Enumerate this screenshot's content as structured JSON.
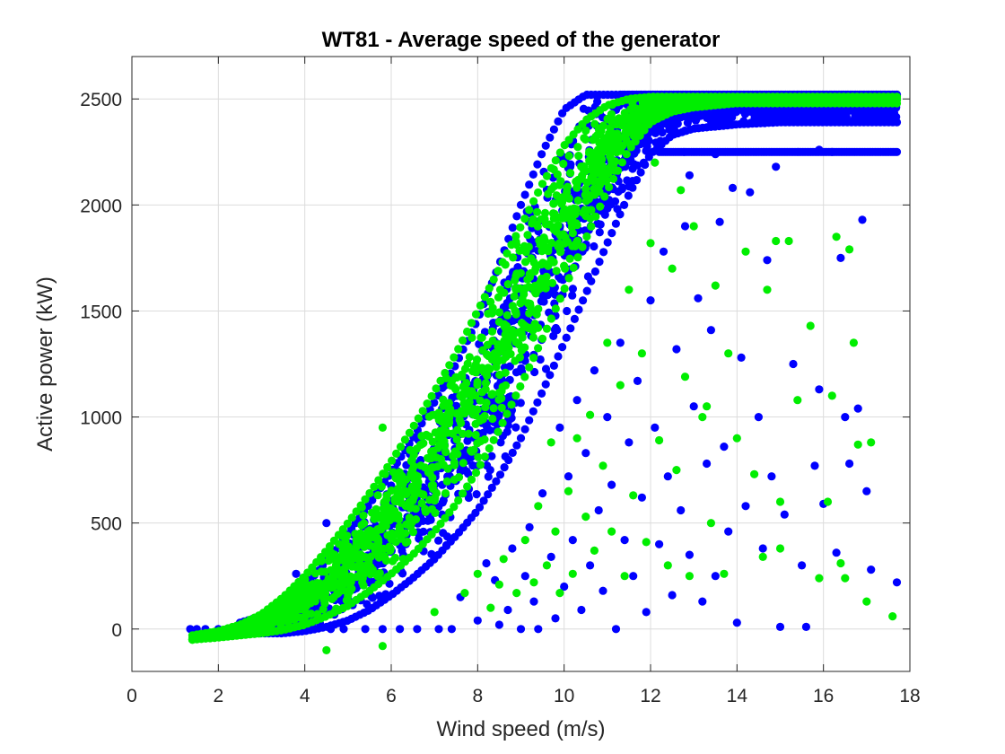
{
  "chart_data": {
    "type": "scatter",
    "title": "WT81 - Average speed of the generator",
    "xlabel": "Wind speed (m/s)",
    "ylabel": "Active power (kW)",
    "xlim": [
      0,
      18
    ],
    "ylim": [
      -200,
      2700
    ],
    "xticks": [
      "0",
      "2",
      "4",
      "6",
      "8",
      "10",
      "12",
      "14",
      "16",
      "18"
    ],
    "yticks": [
      "0",
      "500",
      "1000",
      "1500",
      "2000",
      "2500"
    ],
    "grid": true,
    "legend": "none",
    "series": [
      {
        "color": "#0000ff",
        "band": {
          "x": [
            2.5,
            3.0,
            3.5,
            4.0,
            4.5,
            5.0,
            5.5,
            6.0,
            6.5,
            7.0,
            7.5,
            8.0,
            8.5,
            9.0,
            9.5,
            10.0,
            10.5,
            11.0,
            11.5,
            12.0,
            12.5,
            13.0,
            14.0,
            15.0,
            16.0,
            17.0,
            17.7
          ],
          "low": [
            -20,
            -20,
            -20,
            -10,
            10,
            40,
            90,
            160,
            240,
            330,
            440,
            560,
            720,
            900,
            1120,
            1350,
            1580,
            1820,
            2050,
            2240,
            2330,
            2360,
            2380,
            2390,
            2390,
            2390,
            2390
          ],
          "high": [
            30,
            60,
            120,
            200,
            320,
            450,
            590,
            740,
            900,
            1070,
            1250,
            1460,
            1720,
            2000,
            2250,
            2450,
            2520,
            2520,
            2520,
            2520,
            2520,
            2520,
            2520,
            2520,
            2520,
            2520,
            2520
          ]
        },
        "lines": [
          {
            "x": [
              11.3,
              17.7
            ],
            "y": [
              2520,
              2520
            ]
          },
          {
            "x": [
              12.2,
              17.7
            ],
            "y": [
              2250,
              2250
            ]
          }
        ],
        "points": [
          [
            1.35,
            0
          ],
          [
            1.5,
            0
          ],
          [
            1.7,
            0
          ],
          [
            2.0,
            0
          ],
          [
            2.2,
            0
          ],
          [
            3.8,
            260
          ],
          [
            4.5,
            500
          ],
          [
            4.6,
            0
          ],
          [
            4.9,
            0
          ],
          [
            5.4,
            0
          ],
          [
            5.8,
            0
          ],
          [
            6.2,
            0
          ],
          [
            6.6,
            0
          ],
          [
            7.1,
            0
          ],
          [
            7.4,
            0
          ],
          [
            7.6,
            150
          ],
          [
            8.0,
            40
          ],
          [
            8.2,
            310
          ],
          [
            8.4,
            230
          ],
          [
            8.5,
            20
          ],
          [
            8.7,
            90
          ],
          [
            8.8,
            380
          ],
          [
            9.0,
            0
          ],
          [
            9.1,
            250
          ],
          [
            9.2,
            480
          ],
          [
            9.3,
            130
          ],
          [
            9.4,
            0
          ],
          [
            9.5,
            640
          ],
          [
            9.7,
            340
          ],
          [
            9.8,
            50
          ],
          [
            9.9,
            950
          ],
          [
            10.0,
            200
          ],
          [
            10.1,
            720
          ],
          [
            10.2,
            420
          ],
          [
            10.3,
            1080
          ],
          [
            10.4,
            90
          ],
          [
            10.5,
            830
          ],
          [
            10.6,
            300
          ],
          [
            10.7,
            1220
          ],
          [
            10.8,
            560
          ],
          [
            10.9,
            180
          ],
          [
            11.0,
            1000
          ],
          [
            11.1,
            680
          ],
          [
            11.2,
            0
          ],
          [
            11.3,
            1350
          ],
          [
            11.4,
            420
          ],
          [
            11.5,
            880
          ],
          [
            11.6,
            250
          ],
          [
            11.7,
            1170
          ],
          [
            11.8,
            620
          ],
          [
            11.9,
            80
          ],
          [
            12.0,
            1550
          ],
          [
            12.1,
            950
          ],
          [
            12.2,
            400
          ],
          [
            12.3,
            1780
          ],
          [
            12.4,
            720
          ],
          [
            12.5,
            160
          ],
          [
            12.6,
            1320
          ],
          [
            12.7,
            560
          ],
          [
            12.8,
            1900
          ],
          [
            12.9,
            350
          ],
          [
            13.0,
            1050
          ],
          [
            13.1,
            1560
          ],
          [
            13.2,
            130
          ],
          [
            13.3,
            780
          ],
          [
            13.4,
            1410
          ],
          [
            13.5,
            250
          ],
          [
            13.6,
            1920
          ],
          [
            13.7,
            860
          ],
          [
            13.8,
            460
          ],
          [
            14.0,
            30
          ],
          [
            14.1,
            1280
          ],
          [
            14.2,
            580
          ],
          [
            14.3,
            2060
          ],
          [
            14.5,
            1000
          ],
          [
            14.6,
            380
          ],
          [
            14.7,
            1740
          ],
          [
            14.8,
            720
          ],
          [
            15.0,
            10
          ],
          [
            15.1,
            540
          ],
          [
            15.3,
            1250
          ],
          [
            15.5,
            300
          ],
          [
            15.6,
            10
          ],
          [
            15.8,
            770
          ],
          [
            15.9,
            1130
          ],
          [
            16.0,
            590
          ],
          [
            16.2,
            2250
          ],
          [
            16.3,
            360
          ],
          [
            16.4,
            1750
          ],
          [
            16.5,
            1000
          ],
          [
            16.6,
            780
          ],
          [
            16.8,
            1040
          ],
          [
            17.0,
            650
          ],
          [
            17.1,
            280
          ],
          [
            17.7,
            220
          ],
          [
            16.9,
            1930
          ],
          [
            14.9,
            2180
          ],
          [
            13.9,
            2080
          ],
          [
            13.5,
            2240
          ],
          [
            12.9,
            2140
          ],
          [
            15.9,
            2260
          ]
        ]
      },
      {
        "color": "#00ee00",
        "band": {
          "x": [
            1.4,
            2.0,
            2.5,
            3.0,
            3.5,
            4.0,
            4.5,
            5.0,
            5.5,
            6.0,
            6.5,
            7.0,
            7.5,
            8.0,
            8.5,
            9.0,
            9.5,
            10.0,
            10.5,
            11.0,
            11.5,
            12.0,
            12.5,
            13.0,
            14.0,
            15.0,
            16.0,
            17.0,
            17.7
          ],
          "low": [
            -50,
            -40,
            -30,
            -20,
            -5,
            20,
            60,
            110,
            180,
            260,
            350,
            460,
            590,
            750,
            940,
            1150,
            1370,
            1600,
            1840,
            2070,
            2260,
            2390,
            2440,
            2460,
            2480,
            2480,
            2480,
            2480,
            2480
          ],
          "high": [
            -30,
            -10,
            20,
            70,
            150,
            250,
            370,
            500,
            640,
            790,
            950,
            1120,
            1300,
            1500,
            1700,
            1900,
            2100,
            2280,
            2400,
            2470,
            2500,
            2510,
            2510,
            2510,
            2510,
            2510,
            2510,
            2510,
            2510
          ]
        },
        "lines": [
          {
            "x": [
              12.0,
              17.7
            ],
            "y": [
              2495,
              2495
            ]
          }
        ],
        "points": [
          [
            1.4,
            -50
          ],
          [
            1.8,
            -40
          ],
          [
            2.6,
            20
          ],
          [
            4.5,
            -100
          ],
          [
            5.8,
            950
          ],
          [
            5.8,
            -80
          ],
          [
            7.0,
            80
          ],
          [
            7.7,
            170
          ],
          [
            8.0,
            260
          ],
          [
            8.3,
            100
          ],
          [
            8.5,
            210
          ],
          [
            8.6,
            330
          ],
          [
            8.9,
            170
          ],
          [
            9.1,
            420
          ],
          [
            9.3,
            220
          ],
          [
            9.4,
            580
          ],
          [
            9.6,
            300
          ],
          [
            9.7,
            880
          ],
          [
            9.8,
            460
          ],
          [
            9.9,
            170
          ],
          [
            10.1,
            650
          ],
          [
            10.2,
            260
          ],
          [
            10.3,
            900
          ],
          [
            10.5,
            530
          ],
          [
            10.6,
            1010
          ],
          [
            10.7,
            370
          ],
          [
            10.9,
            770
          ],
          [
            11.0,
            1350
          ],
          [
            11.1,
            460
          ],
          [
            11.3,
            1150
          ],
          [
            11.4,
            250
          ],
          [
            11.5,
            1600
          ],
          [
            11.6,
            630
          ],
          [
            11.8,
            1300
          ],
          [
            11.9,
            410
          ],
          [
            12.0,
            1820
          ],
          [
            12.2,
            890
          ],
          [
            12.4,
            300
          ],
          [
            12.5,
            1700
          ],
          [
            12.6,
            750
          ],
          [
            12.8,
            1190
          ],
          [
            12.9,
            250
          ],
          [
            13.0,
            1900
          ],
          [
            13.2,
            1000
          ],
          [
            13.4,
            500
          ],
          [
            13.5,
            1620
          ],
          [
            13.7,
            260
          ],
          [
            13.8,
            1300
          ],
          [
            14.0,
            900
          ],
          [
            14.2,
            1780
          ],
          [
            14.4,
            730
          ],
          [
            14.6,
            340
          ],
          [
            14.7,
            1600
          ],
          [
            14.9,
            1830
          ],
          [
            15.0,
            600
          ],
          [
            15.2,
            1830
          ],
          [
            15.4,
            1080
          ],
          [
            15.7,
            1430
          ],
          [
            15.9,
            240
          ],
          [
            16.1,
            600
          ],
          [
            16.2,
            1100
          ],
          [
            16.3,
            1850
          ],
          [
            16.4,
            310
          ],
          [
            16.5,
            240
          ],
          [
            16.6,
            1790
          ],
          [
            16.7,
            1350
          ],
          [
            16.8,
            870
          ],
          [
            17.0,
            130
          ],
          [
            17.1,
            880
          ],
          [
            17.6,
            60
          ],
          [
            15.0,
            380
          ],
          [
            13.3,
            1050
          ],
          [
            12.7,
            2070
          ],
          [
            12.1,
            2200
          ]
        ]
      }
    ]
  }
}
